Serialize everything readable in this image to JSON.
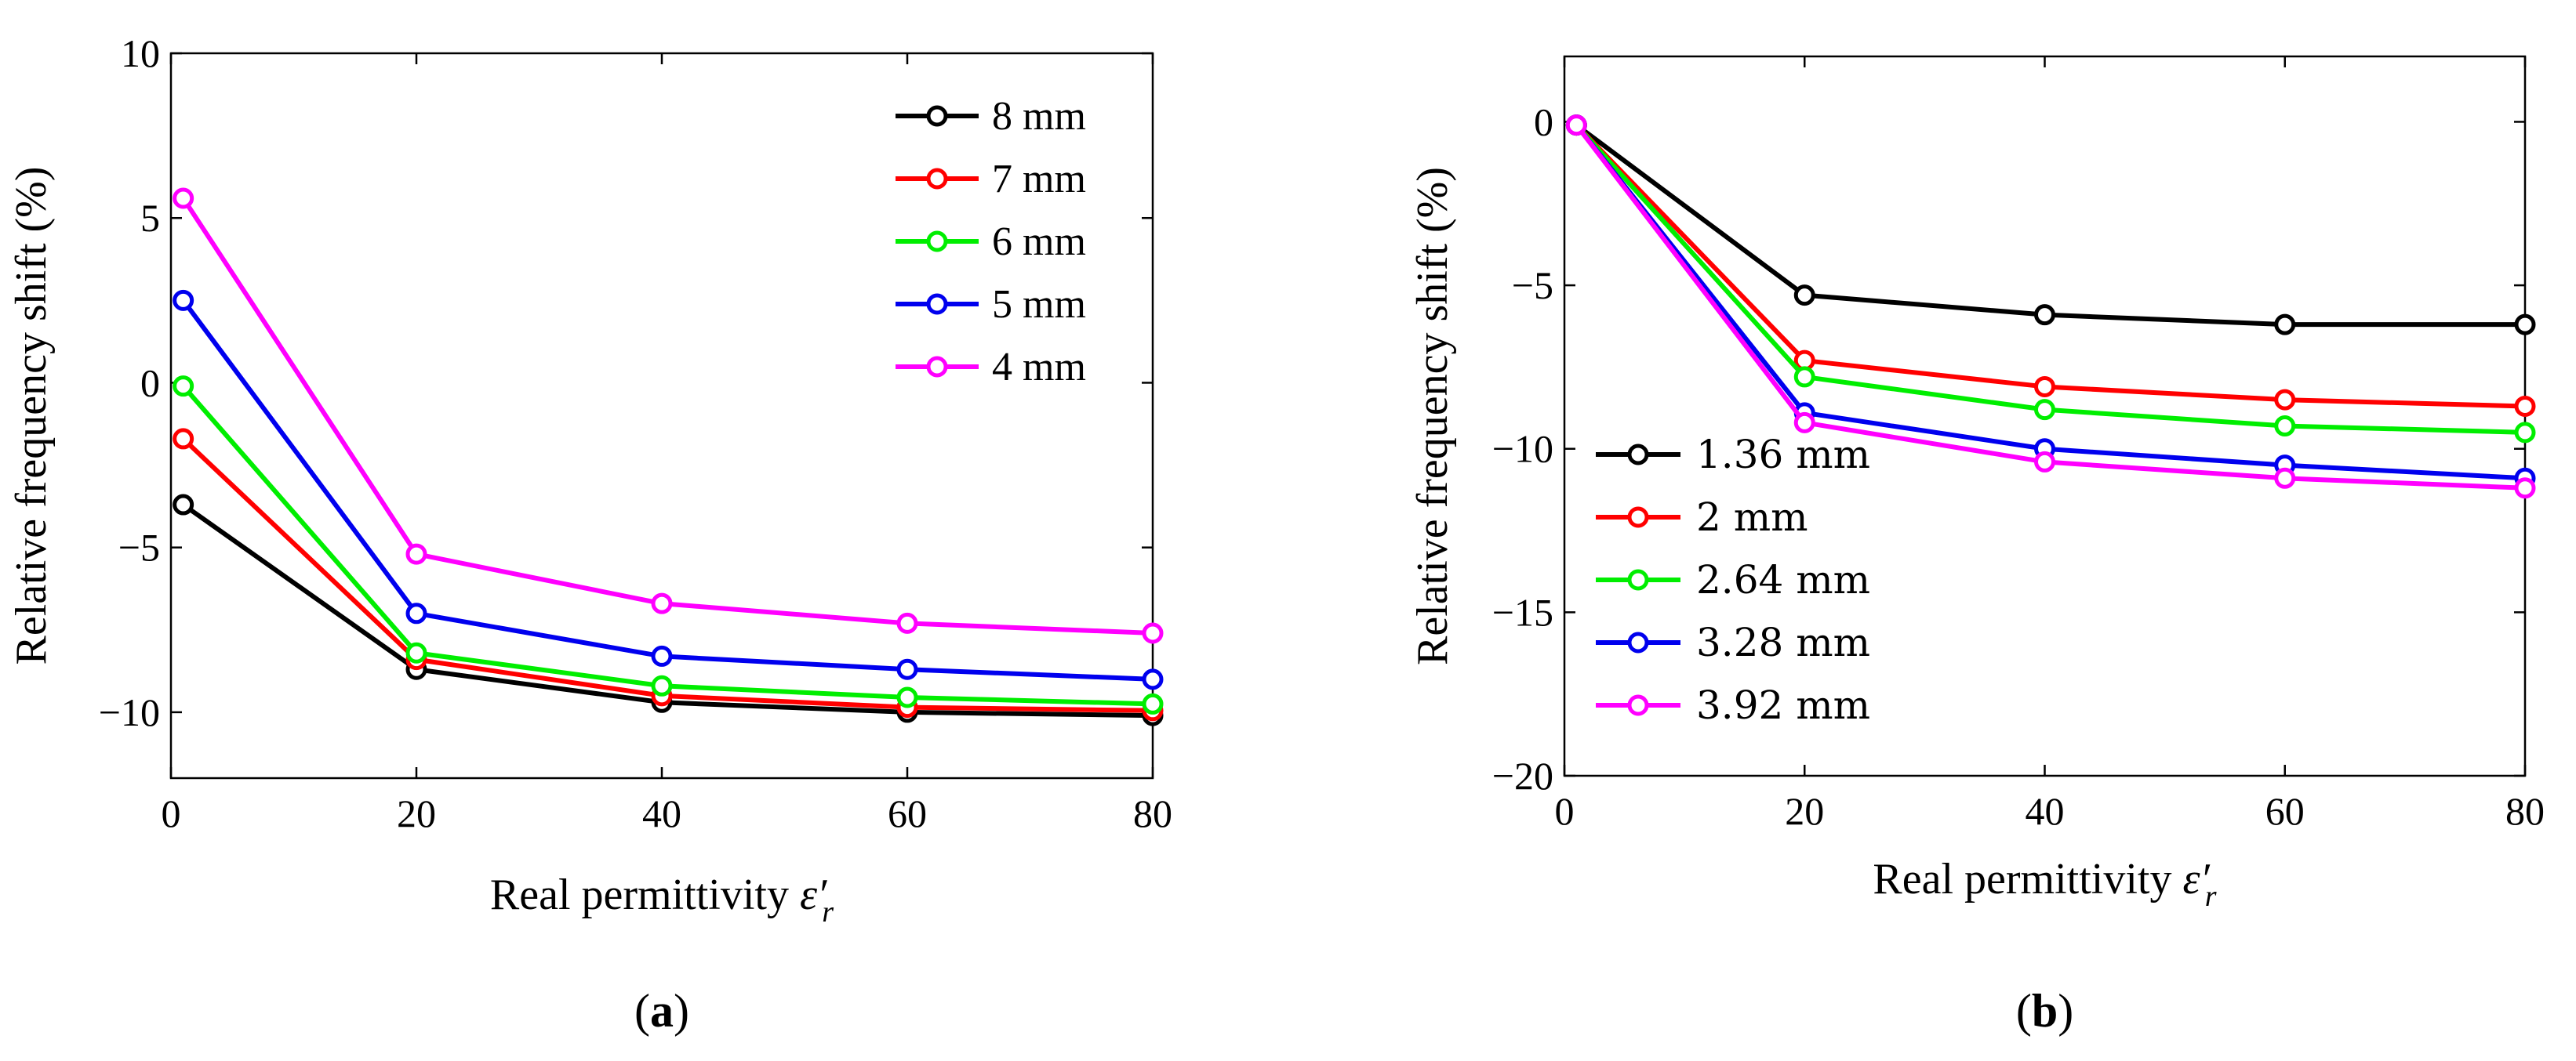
{
  "chart_data": [
    {
      "type": "line",
      "panel_label": "(a)",
      "panel_letter": "a",
      "xlabel": "Real permittivity ε′r",
      "xlabel_main": "Real permittivity ",
      "xlabel_symbol": "ε′",
      "xlabel_sub": "r",
      "ylabel": "Relative frequency shift (%)",
      "xlim": [
        0,
        80
      ],
      "ylim": [
        -12,
        10
      ],
      "xticks": [
        0,
        20,
        40,
        60,
        80
      ],
      "yticks": [
        -10,
        -5,
        0,
        5,
        10
      ],
      "xtick_labels": [
        "0",
        "20",
        "40",
        "60",
        "80"
      ],
      "ytick_labels": [
        "−10",
        "−5",
        "0",
        "5",
        "10"
      ],
      "legend_position": "top-right",
      "grid": false,
      "x": [
        1,
        20,
        40,
        60,
        80
      ],
      "series": [
        {
          "name": "8 mm",
          "color": "#000000",
          "values": [
            -3.7,
            -8.7,
            -9.7,
            -10.0,
            -10.1
          ]
        },
        {
          "name": "7 mm",
          "color": "#ff0000",
          "values": [
            -1.7,
            -8.4,
            -9.5,
            -9.85,
            -9.95
          ]
        },
        {
          "name": "6 mm",
          "color": "#00ee00",
          "values": [
            -0.1,
            -8.2,
            -9.2,
            -9.55,
            -9.75
          ]
        },
        {
          "name": "5 mm",
          "color": "#0000ee",
          "values": [
            2.5,
            -7.0,
            -8.3,
            -8.7,
            -9.0
          ]
        },
        {
          "name": "4 mm",
          "color": "#ff00ff",
          "values": [
            5.6,
            -5.2,
            -6.7,
            -7.3,
            -7.6
          ]
        }
      ]
    },
    {
      "type": "line",
      "panel_label": "(b)",
      "panel_letter": "b",
      "xlabel": "Real permittivity ε′r",
      "xlabel_main": "Real permittivity ",
      "xlabel_symbol": "ε′",
      "xlabel_sub": "r",
      "ylabel": "Relative frequency shift (%)",
      "xlim": [
        0,
        80
      ],
      "ylim": [
        -20,
        2
      ],
      "xticks": [
        0,
        20,
        40,
        60,
        80
      ],
      "yticks": [
        -20,
        -15,
        -10,
        -5,
        0
      ],
      "xtick_labels": [
        "0",
        "20",
        "40",
        "60",
        "80"
      ],
      "ytick_labels": [
        "−20",
        "−15",
        "−10",
        "−5",
        "0"
      ],
      "legend_position": "left-middle",
      "grid": false,
      "x": [
        1,
        20,
        40,
        60,
        80
      ],
      "series": [
        {
          "name": "1.36 mm",
          "color": "#000000",
          "values": [
            -0.1,
            -5.3,
            -5.9,
            -6.2,
            -6.2
          ]
        },
        {
          "name": "2 mm",
          "color": "#ff0000",
          "values": [
            -0.1,
            -7.3,
            -8.1,
            -8.5,
            -8.7
          ]
        },
        {
          "name": "2.64 mm",
          "color": "#00ee00",
          "values": [
            -0.1,
            -7.8,
            -8.8,
            -9.3,
            -9.5
          ]
        },
        {
          "name": "3.28 mm",
          "color": "#0000ee",
          "values": [
            -0.1,
            -8.9,
            -10.0,
            -10.5,
            -10.9
          ]
        },
        {
          "name": "3.92 mm",
          "color": "#ff00ff",
          "values": [
            -0.1,
            -9.2,
            -10.4,
            -10.9,
            -11.2
          ]
        }
      ]
    }
  ]
}
